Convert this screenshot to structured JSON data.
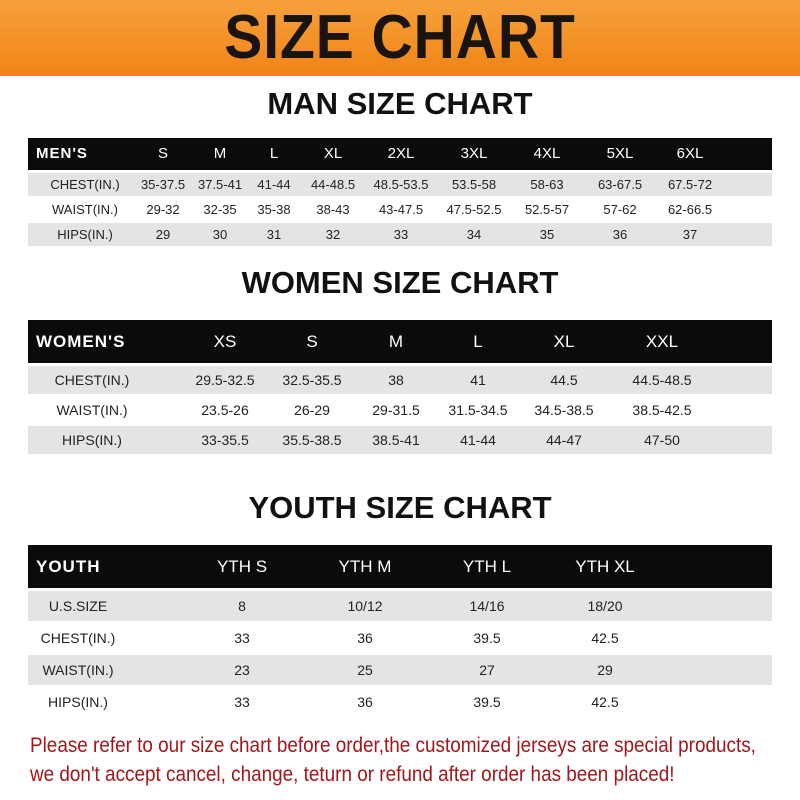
{
  "banner_title": "SIZE CHART",
  "colors": {
    "banner": "#f08417",
    "header_row": "#0c0a0a",
    "stripe": "#e4e4e4",
    "note_text": "#a3161b"
  },
  "tables": [
    {
      "title": "MAN SIZE CHART",
      "header": [
        "MEN'S",
        "S",
        "M",
        "L",
        "XL",
        "2XL",
        "3XL",
        "4XL",
        "5XL",
        "6XL"
      ],
      "rows": [
        [
          "CHEST(IN.)",
          "35-37.5",
          "37.5-41",
          "41-44",
          "44-48.5",
          "48.5-53.5",
          "53.5-58",
          "58-63",
          "63-67.5",
          "67.5-72"
        ],
        [
          "WAIST(IN.)",
          "29-32",
          "32-35",
          "35-38",
          "38-43",
          "43-47.5",
          "47.5-52.5",
          "52.5-57",
          "57-62",
          "62-66.5"
        ],
        [
          "HIPS(IN.)",
          "29",
          "30",
          "31",
          "32",
          "33",
          "34",
          "35",
          "36",
          "37"
        ]
      ]
    },
    {
      "title": "WOMEN SIZE CHART",
      "header": [
        "WOMEN'S",
        "XS",
        "S",
        "M",
        "L",
        "XL",
        "XXL"
      ],
      "rows": [
        [
          "CHEST(IN.)",
          "29.5-32.5",
          "32.5-35.5",
          "38",
          "41",
          "44.5",
          "44.5-48.5"
        ],
        [
          "WAIST(IN.)",
          "23.5-26",
          "26-29",
          "29-31.5",
          "31.5-34.5",
          "34.5-38.5",
          "38.5-42.5"
        ],
        [
          "HIPS(IN.)",
          "33-35.5",
          "35.5-38.5",
          "38.5-41",
          "41-44",
          "44-47",
          "47-50"
        ]
      ]
    },
    {
      "title": "YOUTH SIZE CHART",
      "header": [
        "YOUTH",
        "YTH S",
        "YTH M",
        "YTH L",
        "YTH XL"
      ],
      "rows": [
        [
          "U.S.SIZE",
          "8",
          "10/12",
          "14/16",
          "18/20"
        ],
        [
          "CHEST(IN.)",
          "33",
          "36",
          "39.5",
          "42.5"
        ],
        [
          "WAIST(IN.)",
          "23",
          "25",
          "27",
          "29"
        ],
        [
          "HIPS(IN.)",
          "33",
          "36",
          "39.5",
          "42.5"
        ]
      ]
    }
  ],
  "notice": {
    "line1": "Please refer to our size chart before order,the customized jerseys are special products,",
    "line2": "we don't accept cancel, change, teturn or refund after order has been placed!"
  }
}
